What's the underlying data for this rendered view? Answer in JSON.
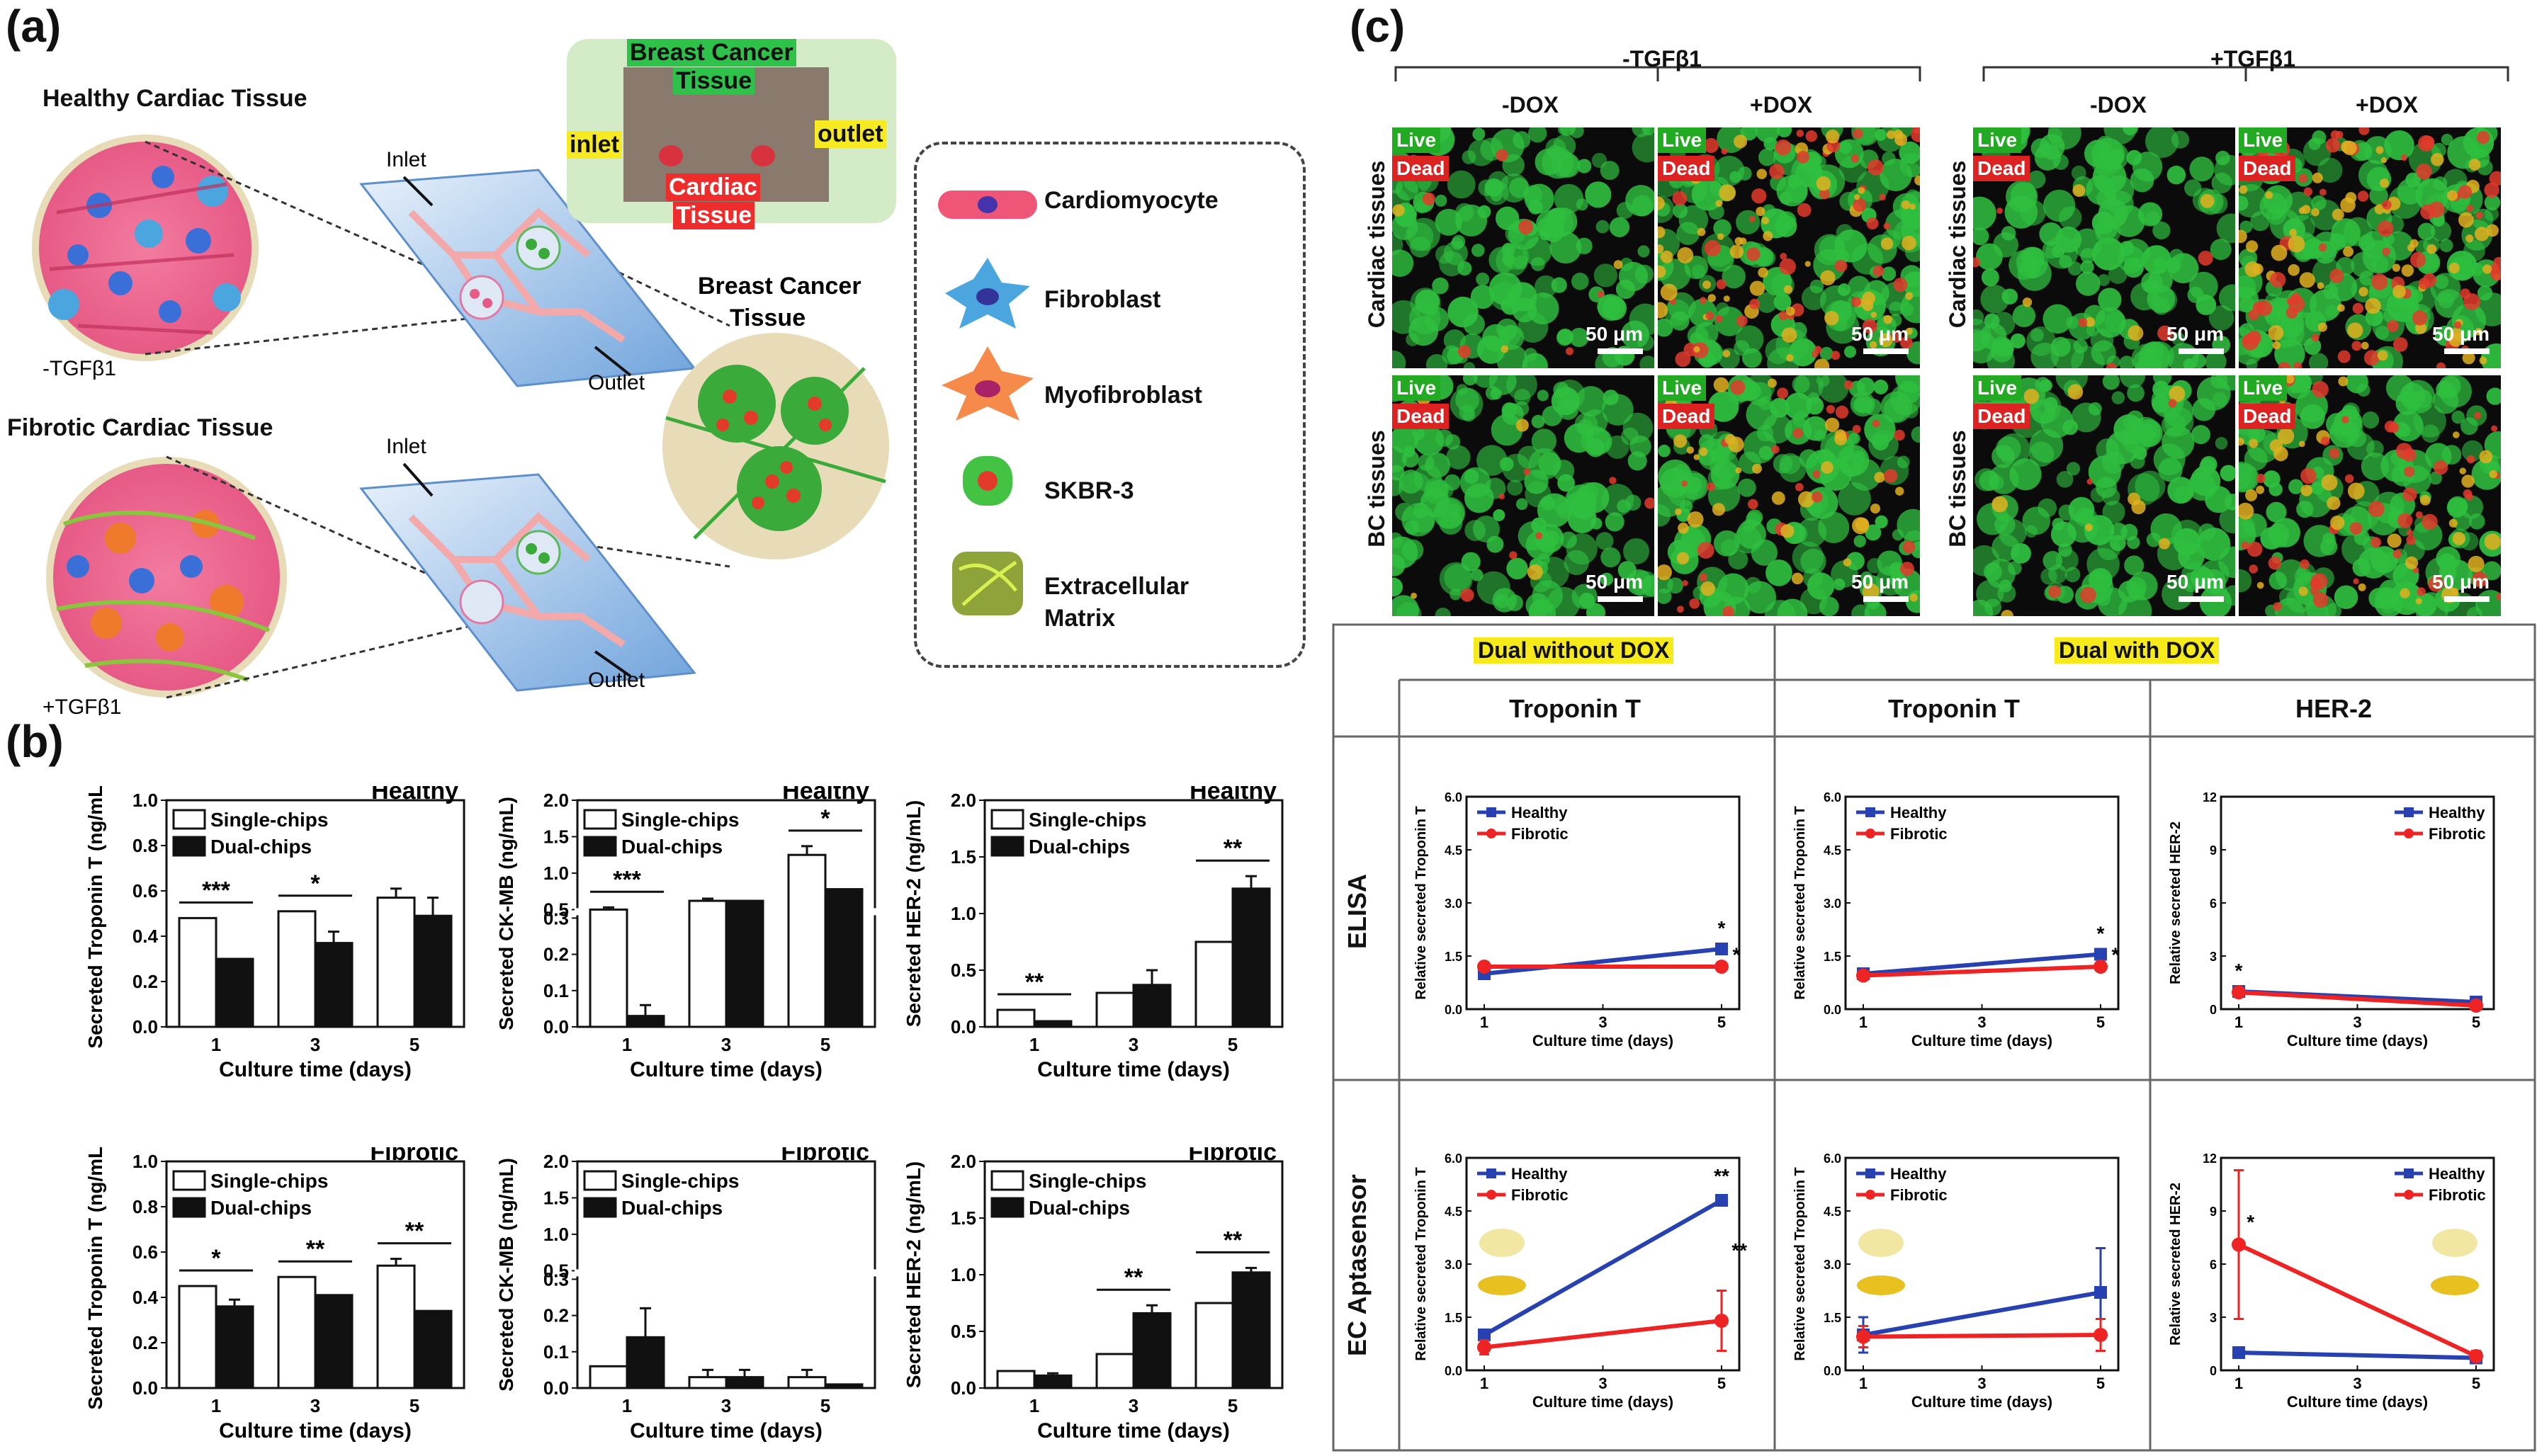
{
  "panel_a": {
    "letter": "(a)",
    "healthy_title": "Healthy Cardiac Tissue",
    "fibrotic_title": "Fibrotic Cardiac Tissue",
    "minus_tgf": "-TGFβ1",
    "plus_tgf": "+TGFβ1",
    "inlet": "Inlet",
    "outlet": "Outlet",
    "inlet2": "Inlet",
    "outlet2": "Outlet",
    "bc_title_1": "Breast Cancer",
    "bc_title_2": "Tissue",
    "photo": {
      "breast": "Breast Cancer",
      "tissue": "Tissue",
      "inlet": "inlet",
      "outlet": "outlet",
      "cardiac": "Cardiac",
      "cardiac_tissue": "Tissue"
    },
    "legend": [
      "Cardiomyocyte",
      "Fibroblast",
      "Myofibroblast",
      "SKBR-3",
      "Extracellular",
      "Matrix"
    ]
  },
  "panel_b": {
    "letter": "(b)"
  },
  "panel_c": {
    "letter": "(c)",
    "group1": "-TGFβ1",
    "group2": "+TGFβ1",
    "dox": [
      "-DOX",
      "+DOX",
      "-DOX",
      "+DOX"
    ],
    "rows": [
      "Cardiac tissues",
      "BC tissues",
      "Cardiac tissues",
      "BC tissues"
    ],
    "live": "Live",
    "dead": "Dead",
    "scale": "50 μm",
    "table": {
      "dual_without": "Dual without DOX",
      "dual_with": "Dual with DOX",
      "col1": "Troponin T",
      "col2": "Troponin T",
      "col3": "HER-2",
      "row1": "ELISA",
      "row2": "EC Aptasensor"
    }
  },
  "colors": {
    "healthy": "#2742b0",
    "fibrotic": "#ee2424",
    "highlight": "#f6ea1a"
  },
  "chart_data": [
    {
      "id": "b1",
      "type": "bar",
      "title": "Healthy",
      "ylabel": "Secreted Troponin T (ng/mL)",
      "xlabel": "Culture time (days)",
      "categories": [
        "1",
        "3",
        "5"
      ],
      "ylim": [
        0,
        1.0
      ],
      "yticks": [
        0.0,
        0.2,
        0.4,
        0.6,
        0.8,
        1.0
      ],
      "series": [
        {
          "name": "Single-chips",
          "values": [
            0.48,
            0.51,
            0.57
          ],
          "err": [
            0.0,
            0.0,
            0.04
          ]
        },
        {
          "name": "Dual-chips",
          "values": [
            0.3,
            0.37,
            0.49
          ],
          "err": [
            0.0,
            0.05,
            0.08
          ]
        }
      ],
      "sig": [
        {
          "cat": 0,
          "label": "***"
        },
        {
          "cat": 1,
          "label": "*"
        }
      ]
    },
    {
      "id": "b2",
      "type": "bar",
      "title": "Healthy",
      "ylabel": "Secreted CK-MB (ng/mL)",
      "xlabel": "Culture time (days)",
      "categories": [
        "1",
        "3",
        "5"
      ],
      "yticks": [
        0.0,
        0.1,
        0.2,
        0.3,
        0.5,
        1.0,
        1.5,
        2.0
      ],
      "broken_axis": true,
      "series": [
        {
          "name": "Single-chips",
          "values": [
            0.5,
            0.62,
            1.25
          ],
          "err": [
            0.03,
            0.03,
            0.12
          ]
        },
        {
          "name": "Dual-chips",
          "values": [
            0.03,
            0.62,
            0.78
          ],
          "err": [
            0.03,
            0.0,
            0.0
          ]
        }
      ],
      "sig": [
        {
          "cat": 0,
          "label": "***"
        },
        {
          "cat": 2,
          "label": "*"
        }
      ]
    },
    {
      "id": "b3",
      "type": "bar",
      "title": "Healthy",
      "ylabel": "Secreted HER-2 (ng/mL)",
      "xlabel": "Culture time (days)",
      "categories": [
        "1",
        "3",
        "5"
      ],
      "ylim": [
        0,
        2.0
      ],
      "yticks": [
        0.0,
        0.5,
        1.0,
        1.5,
        2.0
      ],
      "series": [
        {
          "name": "Single-chips",
          "values": [
            0.15,
            0.3,
            0.75
          ],
          "err": [
            0.0,
            0.0,
            0.0
          ]
        },
        {
          "name": "Dual-chips",
          "values": [
            0.05,
            0.37,
            1.22
          ],
          "err": [
            0.0,
            0.13,
            0.11
          ]
        }
      ],
      "sig": [
        {
          "cat": 0,
          "label": "**"
        },
        {
          "cat": 2,
          "label": "**"
        }
      ]
    },
    {
      "id": "b4",
      "type": "bar",
      "title": "Fibrotic",
      "ylabel": "Secreted Troponin T (ng/mL)",
      "xlabel": "Culture time (days)",
      "categories": [
        "1",
        "3",
        "5"
      ],
      "ylim": [
        0,
        1.0
      ],
      "yticks": [
        0.0,
        0.2,
        0.4,
        0.6,
        0.8,
        1.0
      ],
      "series": [
        {
          "name": "Single-chips",
          "values": [
            0.45,
            0.49,
            0.54
          ],
          "err": [
            0.0,
            0.0,
            0.03
          ]
        },
        {
          "name": "Dual-chips",
          "values": [
            0.36,
            0.41,
            0.34
          ],
          "err": [
            0.03,
            0.0,
            0.0
          ]
        }
      ],
      "sig": [
        {
          "cat": 0,
          "label": "*"
        },
        {
          "cat": 1,
          "label": "**"
        },
        {
          "cat": 2,
          "label": "**"
        }
      ]
    },
    {
      "id": "b5",
      "type": "bar",
      "title": "Fibrotic",
      "ylabel": "Secreted CK-MB (ng/mL)",
      "xlabel": "Culture time (days)",
      "categories": [
        "1",
        "3",
        "5"
      ],
      "yticks": [
        0.0,
        0.1,
        0.2,
        0.3,
        0.5,
        1.0,
        1.5,
        2.0
      ],
      "broken_axis": true,
      "series": [
        {
          "name": "Single-chips",
          "values": [
            0.06,
            0.03,
            0.03
          ],
          "err": [
            0.0,
            0.02,
            0.02
          ]
        },
        {
          "name": "Dual-chips",
          "values": [
            0.14,
            0.03,
            0.01
          ],
          "err": [
            0.08,
            0.02,
            0.0
          ]
        }
      ],
      "sig": []
    },
    {
      "id": "b6",
      "type": "bar",
      "title": "Fibrotic",
      "ylabel": "Secreted HER-2 (ng/mL)",
      "xlabel": "Culture time (days)",
      "categories": [
        "1",
        "3",
        "5"
      ],
      "ylim": [
        0,
        2.0
      ],
      "yticks": [
        0.0,
        0.5,
        1.0,
        1.5,
        2.0
      ],
      "series": [
        {
          "name": "Single-chips",
          "values": [
            0.15,
            0.3,
            0.75
          ],
          "err": [
            0.0,
            0.0,
            0.0
          ]
        },
        {
          "name": "Dual-chips",
          "values": [
            0.11,
            0.66,
            1.02
          ],
          "err": [
            0.02,
            0.07,
            0.04
          ]
        }
      ],
      "sig": [
        {
          "cat": 1,
          "label": "**"
        },
        {
          "cat": 2,
          "label": "**"
        }
      ]
    },
    {
      "id": "c1",
      "type": "line",
      "ylabel": "Relative secreted Troponin T",
      "xlabel": "Culture time (days)",
      "x": [
        1,
        5
      ],
      "xticks": [
        1,
        3,
        5
      ],
      "ylim": [
        0,
        6.0
      ],
      "yticks": [
        "0.0",
        "1.5",
        "3.0",
        "4.5",
        "6.0"
      ],
      "legend_pos": "top-left",
      "series": [
        {
          "name": "Healthy",
          "values": [
            1.0,
            1.7
          ],
          "err": [
            0.1,
            0.15
          ]
        },
        {
          "name": "Fibrotic",
          "values": [
            1.2,
            1.2
          ],
          "err": [
            0.1,
            0.1
          ]
        }
      ],
      "sig": [
        {
          "x": 5,
          "y": 2.1,
          "label": "*"
        },
        {
          "x": 5.25,
          "y": 1.35,
          "label": "*"
        }
      ]
    },
    {
      "id": "c2",
      "type": "line",
      "ylabel": "Relative secreted Troponin T",
      "xlabel": "Culture time (days)",
      "x": [
        1,
        5
      ],
      "xticks": [
        1,
        3,
        5
      ],
      "ylim": [
        0,
        6.0
      ],
      "yticks": [
        "0.0",
        "1.5",
        "3.0",
        "4.5",
        "6.0"
      ],
      "legend_pos": "top-left",
      "series": [
        {
          "name": "Healthy",
          "values": [
            1.0,
            1.55
          ],
          "err": [
            0.08,
            0.1
          ]
        },
        {
          "name": "Fibrotic",
          "values": [
            0.95,
            1.2
          ],
          "err": [
            0.08,
            0.1
          ]
        }
      ],
      "sig": [
        {
          "x": 5,
          "y": 1.95,
          "label": "*"
        },
        {
          "x": 5.25,
          "y": 1.35,
          "label": "*"
        }
      ]
    },
    {
      "id": "c3",
      "type": "line",
      "ylabel": "Relative secreted HER-2",
      "xlabel": "Culture time (days)",
      "x": [
        1,
        5
      ],
      "xticks": [
        1,
        3,
        5
      ],
      "ylim": [
        0,
        12
      ],
      "yticks": [
        "0",
        "3",
        "6",
        "9",
        "12"
      ],
      "legend_pos": "top-right",
      "series": [
        {
          "name": "Healthy",
          "values": [
            1.0,
            0.4
          ],
          "err": [
            0.1,
            0.1
          ]
        },
        {
          "name": "Fibrotic",
          "values": [
            0.95,
            0.2
          ],
          "err": [
            0.1,
            0.1
          ]
        }
      ],
      "sig": [
        {
          "x": 1,
          "y": 1.8,
          "label": "*"
        }
      ]
    },
    {
      "id": "c4",
      "type": "line",
      "ylabel": "Relative secreted Troponin T",
      "xlabel": "Culture time (days)",
      "x": [
        1,
        5
      ],
      "xticks": [
        1,
        3,
        5
      ],
      "ylim": [
        0,
        6.0
      ],
      "yticks": [
        "0.0",
        "1.5",
        "3.0",
        "4.5",
        "6.0"
      ],
      "legend_pos": "top-left",
      "series": [
        {
          "name": "Healthy",
          "values": [
            1.0,
            4.8
          ],
          "err": [
            0.15,
            0.1
          ]
        },
        {
          "name": "Fibrotic",
          "values": [
            0.65,
            1.4
          ],
          "err": [
            0.2,
            0.85
          ]
        }
      ],
      "sig": [
        {
          "x": 5,
          "y": 5.3,
          "label": "**"
        },
        {
          "x": 5.3,
          "y": 3.2,
          "label": "**"
        }
      ]
    },
    {
      "id": "c5",
      "type": "line",
      "ylabel": "Relative secreted Troponin T",
      "xlabel": "Culture time (days)",
      "x": [
        1,
        5
      ],
      "xticks": [
        1,
        3,
        5
      ],
      "ylim": [
        0,
        6.0
      ],
      "yticks": [
        "0.0",
        "1.5",
        "3.0",
        "4.5",
        "6.0"
      ],
      "legend_pos": "top-left",
      "series": [
        {
          "name": "Healthy",
          "values": [
            1.0,
            2.2
          ],
          "err": [
            0.5,
            1.25
          ]
        },
        {
          "name": "Fibrotic",
          "values": [
            0.95,
            1.0
          ],
          "err": [
            0.3,
            0.45
          ]
        }
      ],
      "sig": []
    },
    {
      "id": "c6",
      "type": "line",
      "ylabel": "Relative secreted HER-2",
      "xlabel": "Culture time (days)",
      "x": [
        1,
        5
      ],
      "xticks": [
        1,
        3,
        5
      ],
      "ylim": [
        0,
        12
      ],
      "yticks": [
        "0",
        "3",
        "6",
        "9",
        "12"
      ],
      "legend_pos": "top-right",
      "series": [
        {
          "name": "Healthy",
          "values": [
            1.0,
            0.7
          ],
          "err": [
            0.1,
            0.1
          ]
        },
        {
          "name": "Fibrotic",
          "values": [
            7.1,
            0.8
          ],
          "err": [
            4.2,
            0.3
          ]
        }
      ],
      "sig": [
        {
          "x": 1.2,
          "y": 8.0,
          "label": "*"
        }
      ]
    }
  ]
}
